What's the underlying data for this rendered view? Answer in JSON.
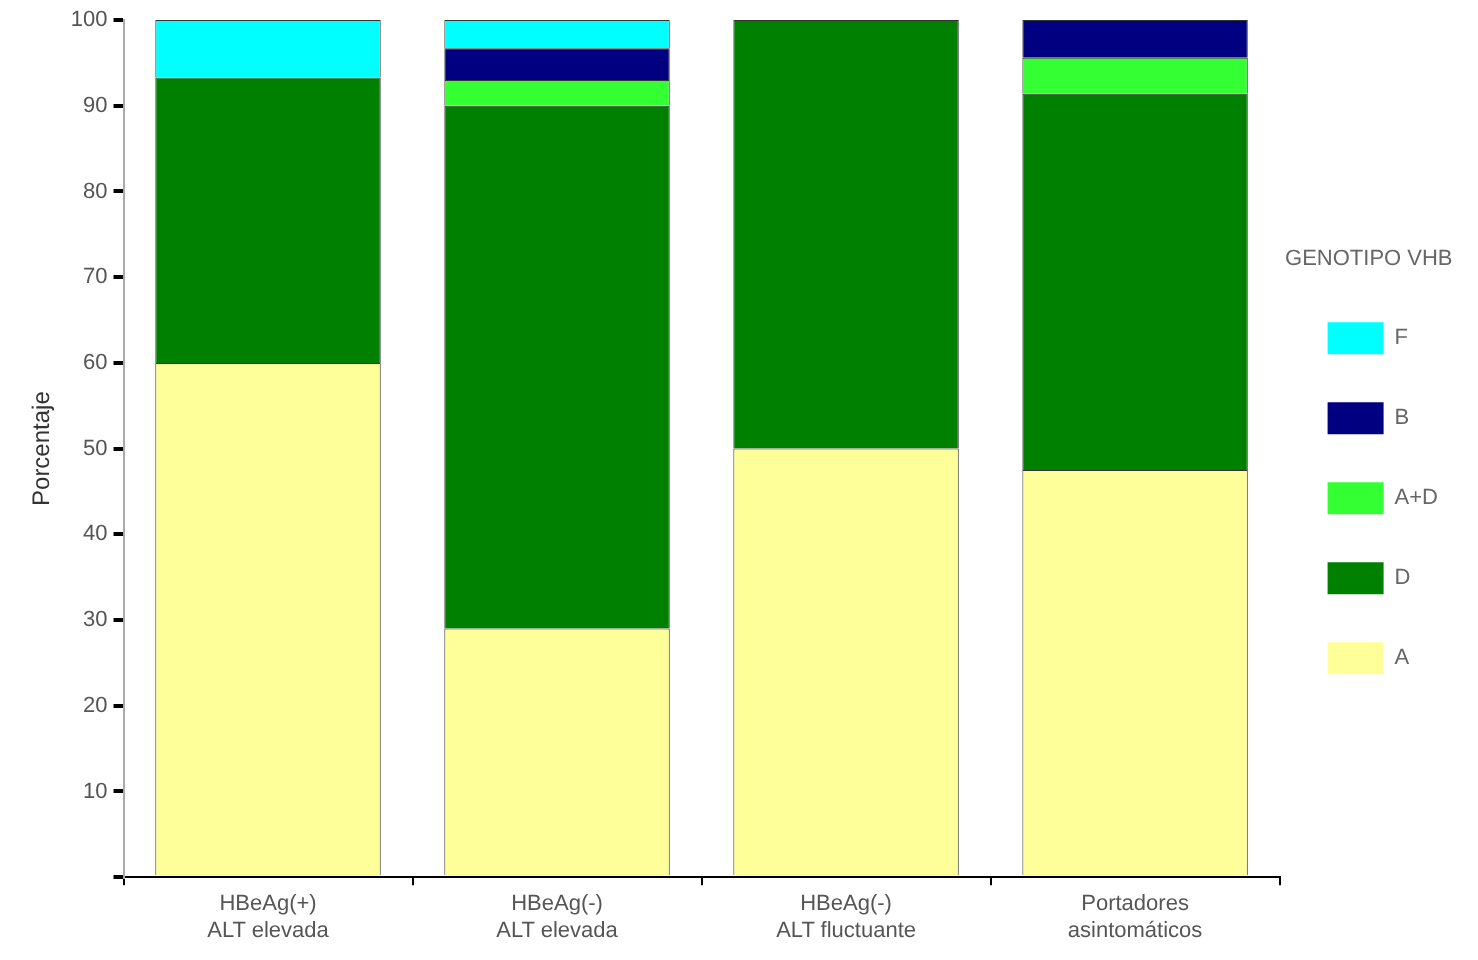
{
  "chart_data": {
    "type": "bar",
    "stacked": true,
    "ylabel": "Porcentaje",
    "legend_title": "GENOTIPO VHB",
    "legend": "right",
    "grid": false,
    "categories": [
      "HBeAg(+)\nALT elevada",
      "HBeAg(-)\nALT elevada",
      "HBeAg(-)\nALT fluctuante",
      "Portadores\nasintomáticos"
    ],
    "ylim": [
      0,
      100
    ],
    "yticks": [
      {
        "value": 0,
        "label": null
      },
      10,
      20,
      30,
      40,
      50,
      60,
      70,
      80,
      90,
      100
    ],
    "series": [
      {
        "name": "A",
        "color": "#ffff99",
        "values": [
          60,
          29,
          50,
          47.5
        ]
      },
      {
        "name": "D",
        "color": "#008000",
        "values": [
          33.3,
          61,
          50,
          43.9
        ]
      },
      {
        "name": "A+D",
        "color": "#33ff33",
        "values": [
          0,
          3,
          0,
          4.2
        ]
      },
      {
        "name": "B",
        "color": "#000080",
        "values": [
          0,
          3.7,
          0,
          4.4
        ]
      },
      {
        "name": "F",
        "color": "#00ffff",
        "values": [
          6.7,
          3.3,
          0,
          0
        ]
      }
    ]
  }
}
